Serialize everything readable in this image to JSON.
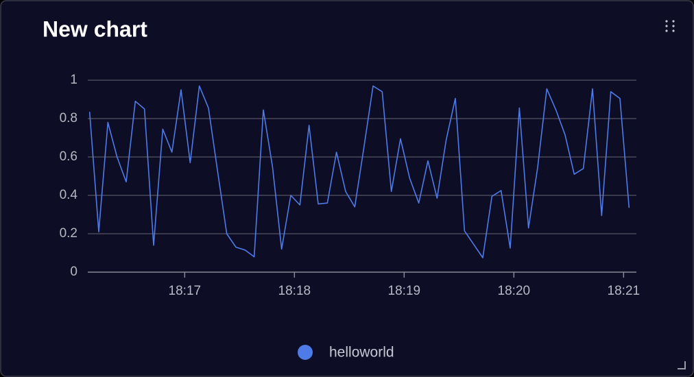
{
  "chart_data": {
    "type": "line",
    "title": "New chart",
    "x": [
      65768,
      65773,
      65778,
      65783,
      65788,
      65793,
      65798,
      65803,
      65808,
      65813,
      65818,
      65823,
      65828,
      65833,
      65838,
      65843,
      65848,
      65853,
      65858,
      65863,
      65868,
      65873,
      65878,
      65883,
      65888,
      65893,
      65898,
      65903,
      65908,
      65913,
      65918,
      65923,
      65928,
      65933,
      65938,
      65943,
      65948,
      65953,
      65958,
      65963,
      65968,
      65973,
      65978,
      65983,
      65988,
      65993,
      65998,
      66003,
      66008,
      66013,
      66018,
      66023,
      66028,
      66033,
      66038,
      66043,
      66048,
      66053,
      66058,
      66063
    ],
    "series": [
      {
        "name": "helloworld",
        "color": "#4f7be8",
        "values": [
          0.835,
          0.21,
          0.78,
          0.6,
          0.47,
          0.89,
          0.85,
          0.14,
          0.745,
          0.625,
          0.95,
          0.57,
          0.97,
          0.855,
          0.525,
          0.2,
          0.13,
          0.115,
          0.08,
          0.845,
          0.55,
          0.12,
          0.4,
          0.35,
          0.765,
          0.355,
          0.36,
          0.625,
          0.42,
          0.34,
          0.65,
          0.97,
          0.94,
          0.42,
          0.695,
          0.49,
          0.36,
          0.58,
          0.385,
          0.69,
          0.905,
          0.215,
          0.145,
          0.075,
          0.395,
          0.425,
          0.125,
          0.855,
          0.23,
          0.545,
          0.955,
          0.845,
          0.715,
          0.51,
          0.54,
          0.955,
          0.295,
          0.94,
          0.905,
          0.335
        ]
      }
    ],
    "xlim": [
      65767,
      66067
    ],
    "xticks": [
      {
        "value": 65820,
        "label": "18:17"
      },
      {
        "value": 65880,
        "label": "18:18"
      },
      {
        "value": 65940,
        "label": "18:19"
      },
      {
        "value": 66000,
        "label": "18:20"
      },
      {
        "value": 66060,
        "label": "18:21"
      }
    ],
    "ylim": [
      0,
      1
    ],
    "yticks": [
      0,
      0.2,
      0.4,
      0.6,
      0.8,
      1
    ],
    "grid": true,
    "legend": "bottom"
  }
}
